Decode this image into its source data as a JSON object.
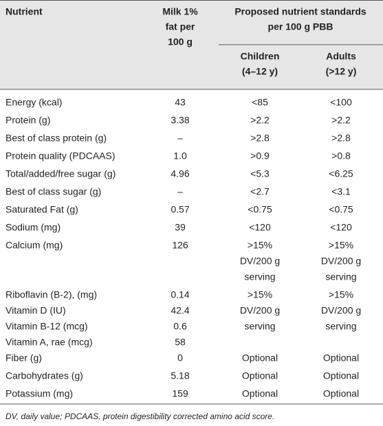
{
  "header": {
    "nutrient": "Nutrient",
    "milk": [
      "Milk 1%",
      "fat per",
      "100 g"
    ],
    "standards": [
      "Proposed nutrient standards",
      "per 100 g PBB"
    ],
    "children": [
      "Children",
      "(4–12 y)"
    ],
    "adults": [
      "Adults",
      "(>12 y)"
    ]
  },
  "rows": [
    [
      [
        "Energy (kcal)"
      ],
      [
        "43"
      ],
      [
        "<85"
      ],
      [
        "<100"
      ]
    ],
    [
      [
        "Protein (g)"
      ],
      [
        "3.38"
      ],
      [
        ">2.2"
      ],
      [
        ">2.2"
      ]
    ],
    [
      [
        "Best of class protein (g)"
      ],
      [
        "–"
      ],
      [
        ">2.8"
      ],
      [
        ">2.8"
      ]
    ],
    [
      [
        "Protein quality (PDCAAS)"
      ],
      [
        "1.0"
      ],
      [
        ">0.9"
      ],
      [
        ">0.8"
      ]
    ],
    [
      [
        "Total/added/free sugar (g)"
      ],
      [
        "4.96"
      ],
      [
        "<5.3"
      ],
      [
        "<6.25"
      ]
    ],
    [
      [
        "Best of class sugar (g)"
      ],
      [
        "–"
      ],
      [
        "<2.7"
      ],
      [
        "<3.1"
      ]
    ],
    [
      [
        "Saturated Fat (g)"
      ],
      [
        "0.57"
      ],
      [
        "<0.75"
      ],
      [
        "<0.75"
      ]
    ],
    [
      [
        "Sodium (mg)"
      ],
      [
        "39"
      ],
      [
        "<120"
      ],
      [
        "<120"
      ]
    ],
    [
      [
        "Calcium (mg)"
      ],
      [
        "126"
      ],
      [
        ">15%",
        "DV/200 g",
        "serving"
      ],
      [
        ">15%",
        "DV/200 g",
        "serving"
      ]
    ],
    [
      [
        "Riboflavin (B-2), (mg)",
        "Vitamin D (IU)",
        "Vitamin B-12 (mcg)",
        "Vitamin A, rae (mcg)"
      ],
      [
        "0.14",
        "42.4",
        "0.6",
        "58"
      ],
      [
        ">15%",
        "DV/200 g",
        "serving"
      ],
      [
        ">15%",
        "DV/200 g",
        "serving"
      ]
    ],
    [
      [
        "Fiber (g)"
      ],
      [
        "0"
      ],
      [
        "Optional"
      ],
      [
        "Optional"
      ]
    ],
    [
      [
        "Carbohydrates (g)"
      ],
      [
        "5.18"
      ],
      [
        "Optional"
      ],
      [
        "Optional"
      ]
    ],
    [
      [
        "Potassium (mg)"
      ],
      [
        "159"
      ],
      [
        "Optional"
      ],
      [
        "Optional"
      ]
    ]
  ],
  "footnote": "DV, daily value; PDCAAS, protein digestibility corrected amino acid score."
}
